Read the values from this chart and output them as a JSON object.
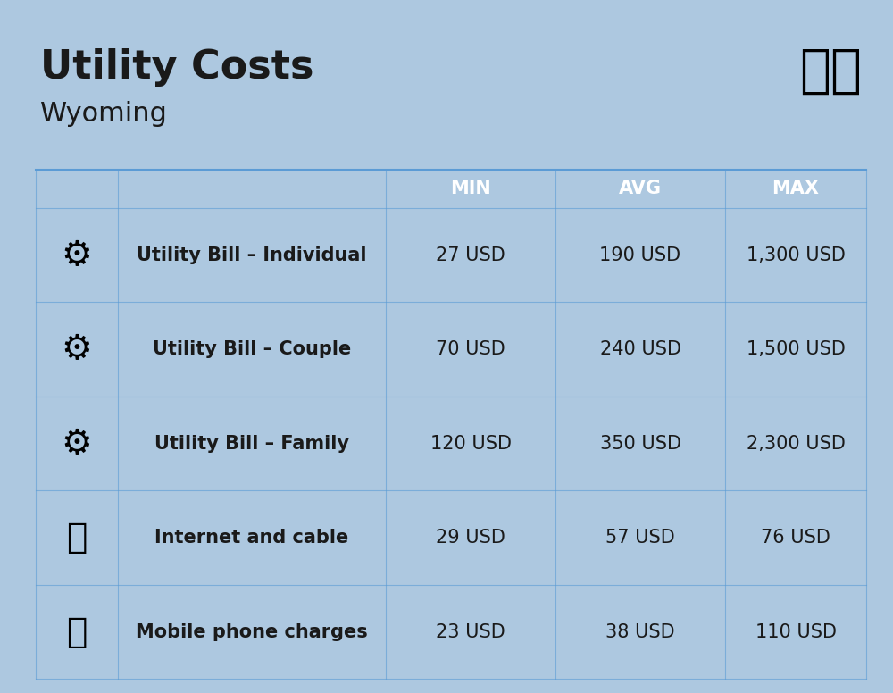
{
  "title": "Utility Costs",
  "subtitle": "Wyoming",
  "background_color": "#adc8e0",
  "header_bg_color": "#5b9bd5",
  "header_text_color": "#ffffff",
  "row_bg_color_1": "#c5d9f1",
  "row_bg_color_2": "#dce6f1",
  "col_header_labels": [
    "MIN",
    "AVG",
    "MAX"
  ],
  "rows": [
    {
      "label": "Utility Bill – Individual",
      "min": "27 USD",
      "avg": "190 USD",
      "max": "1,300 USD",
      "icon": "utility_individual"
    },
    {
      "label": "Utility Bill – Couple",
      "min": "70 USD",
      "avg": "240 USD",
      "max": "1,500 USD",
      "icon": "utility_couple"
    },
    {
      "label": "Utility Bill – Family",
      "min": "120 USD",
      "avg": "350 USD",
      "max": "2,300 USD",
      "icon": "utility_family"
    },
    {
      "label": "Internet and cable",
      "min": "29 USD",
      "avg": "57 USD",
      "max": "76 USD",
      "icon": "internet"
    },
    {
      "label": "Mobile phone charges",
      "min": "23 USD",
      "avg": "38 USD",
      "max": "110 USD",
      "icon": "mobile"
    }
  ],
  "title_fontsize": 32,
  "subtitle_fontsize": 22,
  "header_fontsize": 15,
  "cell_fontsize": 15,
  "label_fontsize": 15
}
